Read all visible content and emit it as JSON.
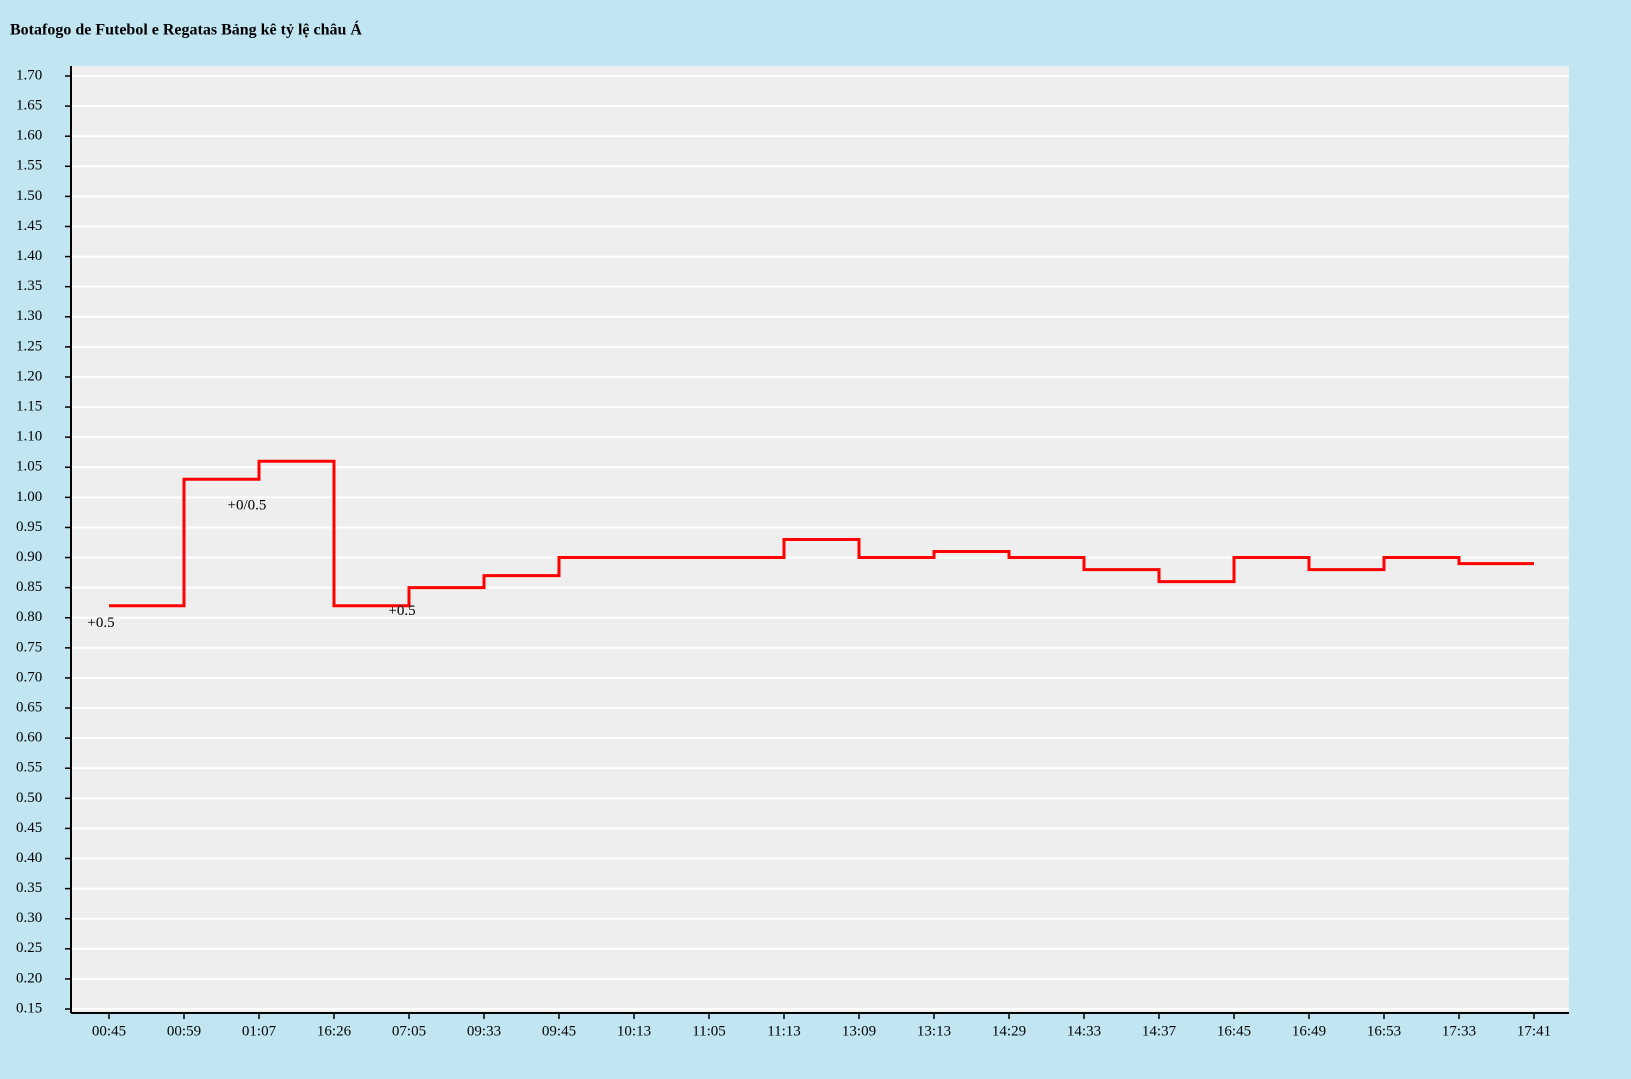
{
  "chart_data": {
    "type": "step",
    "title": "Botafogo de Futebol e Regatas Bảng kê tỷ lệ châu Á",
    "categories": [
      "00:45",
      "00:59",
      "01:07",
      "16:26",
      "07:05",
      "09:33",
      "09:45",
      "10:13",
      "11:05",
      "11:13",
      "13:09",
      "13:13",
      "14:29",
      "14:33",
      "14:37",
      "16:45",
      "16:49",
      "16:53",
      "17:33",
      "17:41"
    ],
    "series": [
      {
        "color": "#ff0000",
        "values": [
          0.82,
          1.03,
          1.06,
          0.82,
          0.85,
          0.87,
          0.9,
          0.9,
          0.9,
          0.93,
          0.9,
          0.91,
          0.9,
          0.88,
          0.86,
          0.9,
          0.88,
          0.9,
          0.89,
          0.89
        ]
      }
    ],
    "annotations": [
      {
        "text": "+0.5",
        "x": "00:45"
      },
      {
        "text": "+0/0.5",
        "x": "01:07"
      },
      {
        "text": "+0.5",
        "x": "07:05"
      }
    ],
    "ylim": [
      0.15,
      1.7
    ],
    "yticks": [
      0.15,
      {
        "value": 0.2,
        "label": "0.20"
      },
      0.25,
      {
        "value": 0.3,
        "label": "0.30"
      },
      0.35,
      {
        "value": 0.4,
        "label": "0.40"
      },
      0.45,
      {
        "value": 0.5,
        "label": "0.50"
      },
      0.55,
      {
        "value": 0.6,
        "label": "0.60"
      },
      0.65,
      {
        "value": 0.7,
        "label": "0.70"
      },
      0.75,
      {
        "value": 0.8,
        "label": "0.80"
      },
      0.85,
      {
        "value": 0.9,
        "label": "0.90"
      },
      0.95,
      {
        "value": 1,
        "label": "1.00"
      },
      1.05,
      {
        "value": 1.1,
        "label": "1.10"
      },
      1.15,
      {
        "value": 1.2,
        "label": "1.20"
      },
      1.25,
      {
        "value": 1.3,
        "label": "1.30"
      },
      1.35,
      {
        "value": 1.4,
        "label": "1.40"
      },
      1.45,
      {
        "value": 1.5,
        "label": "1.50"
      },
      1.55,
      {
        "value": 1.6,
        "label": "1.60"
      },
      1.65,
      {
        "value": 1.7,
        "label": "1.70"
      }
    ],
    "grid": true
  }
}
